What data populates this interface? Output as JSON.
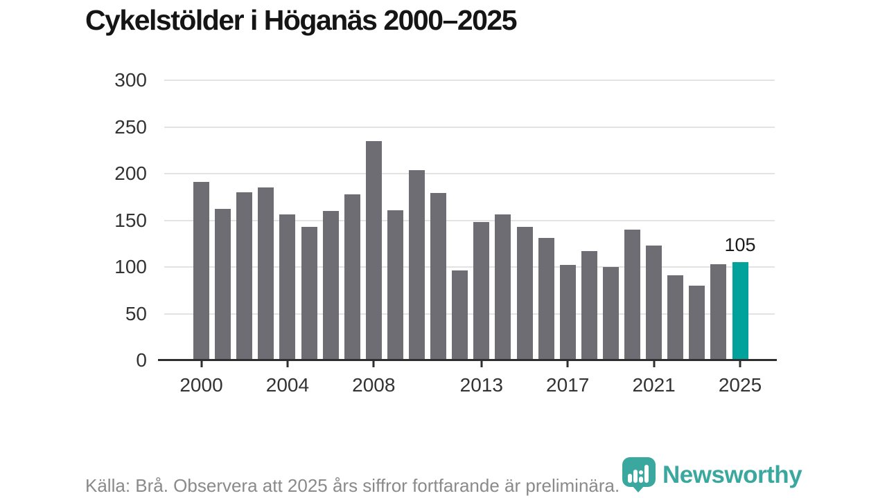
{
  "title": "Cykelstölder i Höganäs 2000–2025",
  "chart_data": {
    "type": "bar",
    "title": "Cykelstölder i Höganäs 2000–2025",
    "categories": [
      2000,
      2001,
      2002,
      2003,
      2004,
      2005,
      2006,
      2007,
      2008,
      2009,
      2010,
      2011,
      2012,
      2013,
      2014,
      2015,
      2016,
      2017,
      2018,
      2019,
      2020,
      2021,
      2022,
      2023,
      2024,
      2025
    ],
    "values": [
      191,
      162,
      180,
      185,
      156,
      143,
      160,
      178,
      235,
      161,
      204,
      179,
      96,
      148,
      156,
      143,
      131,
      102,
      117,
      100,
      140,
      123,
      91,
      80,
      103,
      105
    ],
    "xlabel": "",
    "ylabel": "",
    "ylim": [
      0,
      300
    ],
    "yticks": [
      0,
      50,
      100,
      150,
      200,
      250,
      300
    ],
    "xtick_years": [
      2000,
      2004,
      2008,
      2013,
      2017,
      2021,
      2025
    ],
    "grid": "horizontal",
    "legend": "none",
    "bar_color": "#6e6d73",
    "highlight_year": 2025,
    "highlight_color": "#00a29b",
    "annotation": {
      "year": 2025,
      "text": "105"
    }
  },
  "footer": {
    "source_note": "Källa: Brå. Observera att 2025 års siffror fortfarande är preliminära."
  },
  "logo": {
    "wordmark": "Newsworthy",
    "icon": "newsworthy-bubble-bar-chart-icon",
    "color": "#3ba89f"
  }
}
